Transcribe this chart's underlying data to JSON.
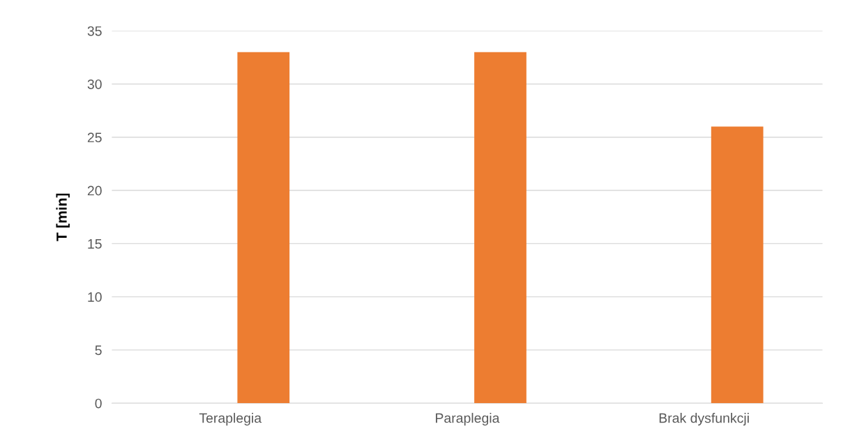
{
  "chart_data": {
    "type": "bar",
    "ylabel": "T [min]",
    "categories": [
      "Teraplegia",
      "Paraplegia",
      "Brak dysfunkcji"
    ],
    "values": [
      33,
      33,
      26
    ],
    "color": "#ed7d31",
    "ylim": [
      0,
      35
    ],
    "yticks": [
      0,
      5,
      10,
      15,
      20,
      25,
      30,
      35
    ],
    "grid": "y",
    "legend": false
  }
}
